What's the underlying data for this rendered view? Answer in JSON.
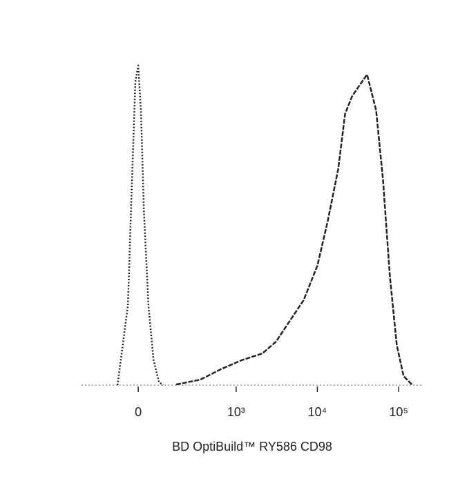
{
  "chart_data": {
    "type": "line",
    "x_label": "BD OptiBuild™ RY586 CD98",
    "xscale": "biexponential",
    "xlim": [
      -300,
      190000
    ],
    "xticks": [
      0,
      {
        "value": 1000,
        "label": "10³"
      },
      {
        "value": 10000,
        "label": "10⁴"
      },
      {
        "value": 100000,
        "label": "10⁵"
      }
    ],
    "ylim": [
      0,
      100
    ],
    "series": [
      {
        "color": "#222222",
        "linestyle": "dotted",
        "x": [
          -78,
          -37,
          -20,
          -10,
          0,
          10,
          20,
          37,
          56,
          78,
          96
        ],
        "values": [
          0,
          25,
          70,
          95,
          100,
          85,
          55,
          25,
          8,
          1,
          0
        ]
      },
      {
        "color": "#222222",
        "linestyle": "dashed",
        "x": [
          162,
          352,
          647,
          1169,
          2104,
          3103,
          4595,
          6786,
          10020,
          13440,
          18036,
          21940,
          26630,
          32350,
          40900,
          52740,
          64060,
          77870,
          94680,
          115000,
          145400
        ],
        "values": [
          0.2,
          1.7,
          5.0,
          7.8,
          9.9,
          13.6,
          20.1,
          26.6,
          37.4,
          51.4,
          67.6,
          84.9,
          90.3,
          93.5,
          97.2,
          86,
          64.4,
          34.1,
          12.5,
          2.8,
          0.2
        ]
      }
    ]
  }
}
